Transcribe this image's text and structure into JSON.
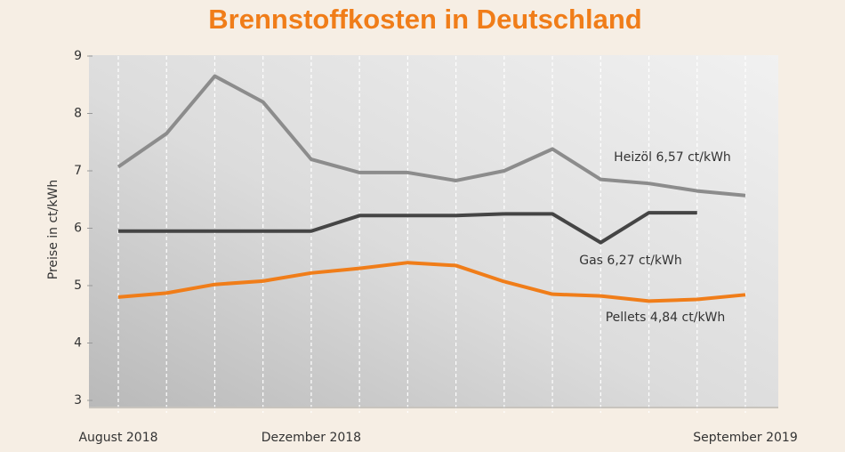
{
  "chart_data": {
    "type": "line",
    "title": "Brennstoffkosten in Deutschland",
    "y_label": "Preise in ct/kWh",
    "categories": [
      "August 2018",
      null,
      null,
      null,
      "Dezember 2018",
      null,
      null,
      null,
      null,
      null,
      null,
      null,
      null,
      "September 2019"
    ],
    "series": [
      {
        "name": "Heizöl 6,57 ct/kWh",
        "color": "#8c8c8c",
        "values": [
          7.07,
          7.65,
          8.65,
          8.2,
          7.2,
          6.97,
          6.97,
          6.83,
          7.0,
          7.38,
          6.85,
          6.78,
          6.65,
          6.57
        ]
      },
      {
        "name": "Gas 6,27 ct/kWh",
        "color": "#454545",
        "values": [
          5.95,
          5.95,
          5.95,
          5.95,
          5.95,
          6.22,
          6.22,
          6.22,
          6.25,
          6.25,
          5.75,
          6.27,
          6.27,
          null
        ]
      },
      {
        "name": "Pellets 4,84 ct/kWh",
        "color": "#f07d19",
        "values": [
          4.8,
          4.87,
          5.02,
          5.08,
          5.22,
          5.3,
          5.4,
          5.35,
          5.07,
          4.85,
          4.82,
          4.73,
          4.76,
          4.84
        ]
      }
    ],
    "ylim": [
      3,
      9
    ],
    "yticks": [
      3,
      4,
      5,
      6,
      7,
      8,
      9
    ],
    "grid": true
  }
}
